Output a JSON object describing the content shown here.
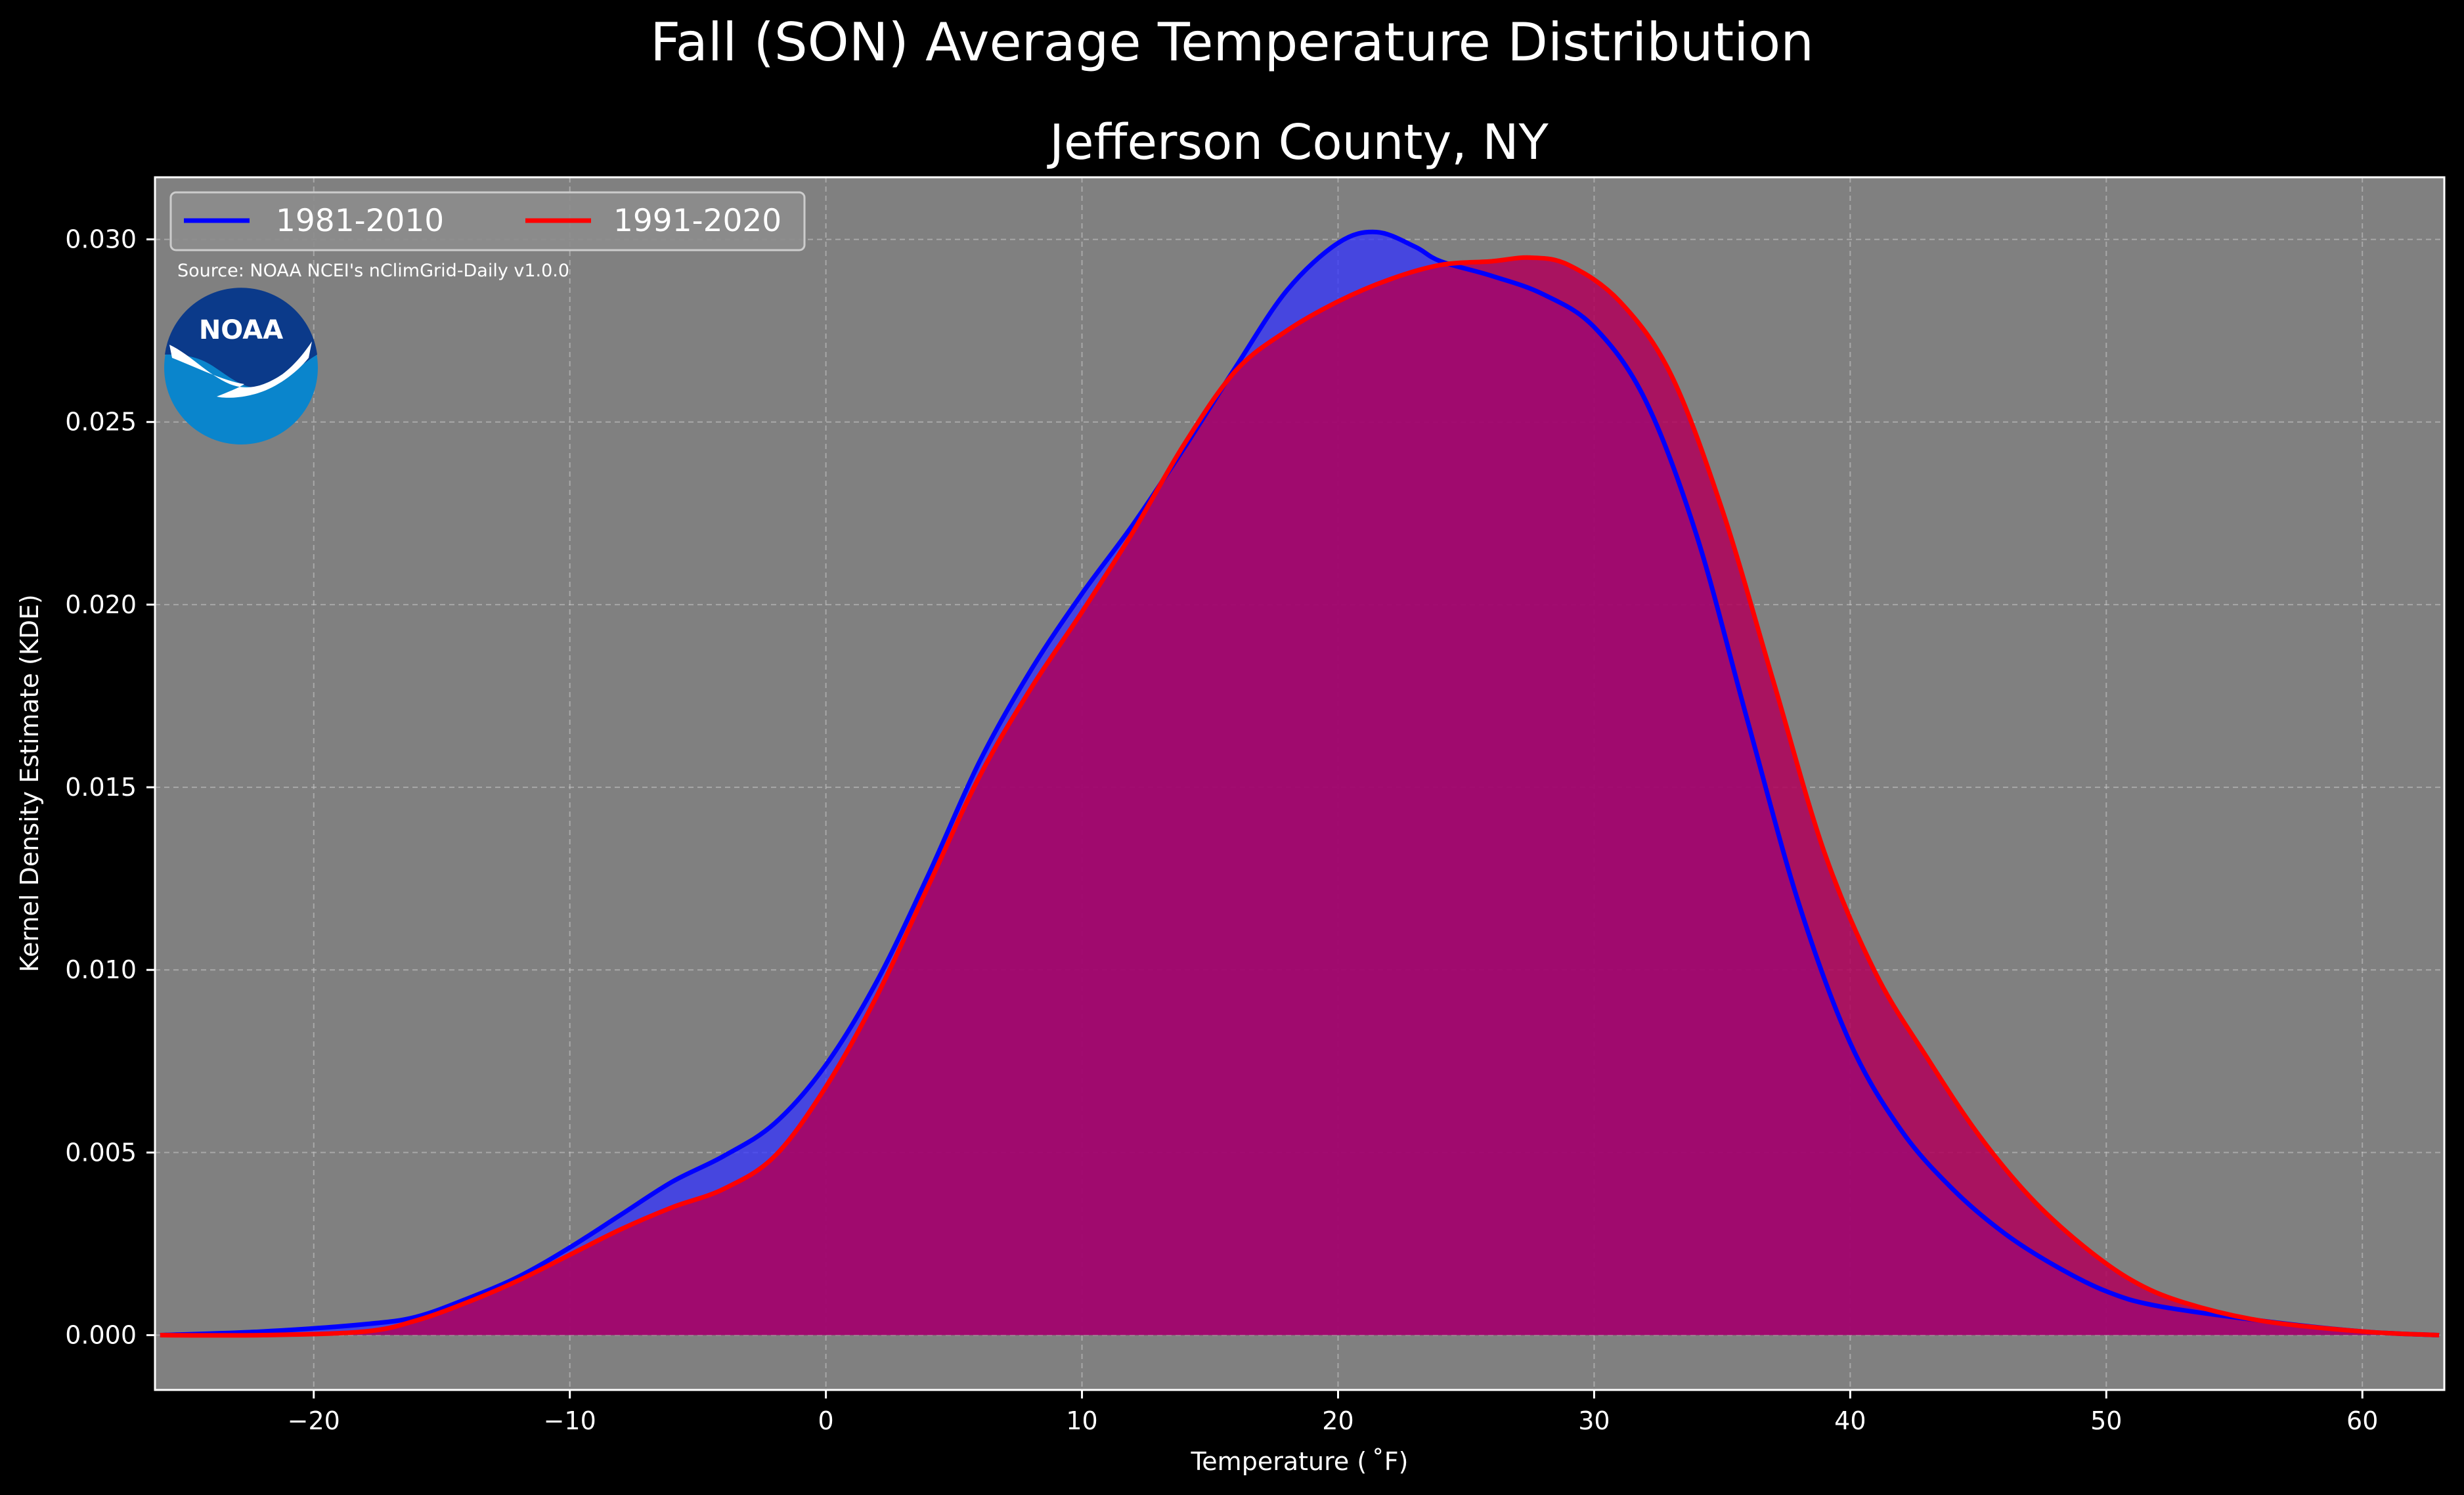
{
  "suptitle": "Fall (SON) Average Temperature Distribution",
  "source_note": "Source: NOAA NCEI's nClimGrid-Daily v1.0.0",
  "logo_text": "NOAA",
  "colors": {
    "background": "#000000",
    "plot_bg": "#808080",
    "series1_line": "#0000ff",
    "series1_fill": "#3333ff",
    "series2_line": "#ff0000",
    "series2_fill": "#b0005a",
    "grid": "#c8c8c8",
    "noaa_dark": "#0b3a8a",
    "noaa_light": "#0a85cc"
  },
  "chart_data": {
    "type": "area",
    "title": "Jefferson County, NY",
    "xlabel": "Temperature ($^\\circ$F)",
    "xlabel_display": "Temperature ( ˚F)",
    "ylabel": "Kernel Density Estimate (KDE)",
    "xlim": [
      -26.2,
      63.2
    ],
    "ylim": [
      -0.0015,
      0.0317
    ],
    "xticks": [
      -20,
      -10,
      0,
      10,
      20,
      30,
      40,
      50,
      60
    ],
    "xtick_labels": [
      "−20",
      "−10",
      "0",
      "10",
      "20",
      "30",
      "40",
      "50",
      "60"
    ],
    "yticks": [
      0.0,
      0.005,
      0.01,
      0.015,
      0.02,
      0.025,
      0.03
    ],
    "ytick_labels": [
      "0.000",
      "0.005",
      "0.010",
      "0.015",
      "0.020",
      "0.025",
      "0.030"
    ],
    "grid": true,
    "legend_position": "top-left",
    "series": [
      {
        "name": "1981-2010",
        "x": [
          -26,
          -22,
          -18,
          -16,
          -14,
          -12,
          -10,
          -8,
          -6,
          -4,
          -2,
          0,
          2,
          4,
          6,
          8,
          10,
          12,
          14,
          16,
          18,
          20,
          21.5,
          23,
          24,
          26,
          28,
          30,
          32,
          34,
          36,
          38,
          40,
          42,
          44,
          46,
          48,
          50,
          52,
          56,
          60,
          63
        ],
        "y": [
          0.0,
          0.0001,
          0.0003,
          0.0005,
          0.001,
          0.0016,
          0.0024,
          0.0033,
          0.0042,
          0.0049,
          0.0058,
          0.0074,
          0.0097,
          0.0126,
          0.0157,
          0.0182,
          0.0203,
          0.0222,
          0.0243,
          0.0265,
          0.0286,
          0.0299,
          0.0302,
          0.0298,
          0.0294,
          0.029,
          0.0285,
          0.0276,
          0.0256,
          0.0219,
          0.0168,
          0.0118,
          0.008,
          0.0056,
          0.004,
          0.0028,
          0.0019,
          0.0012,
          0.0008,
          0.0004,
          0.0001,
          0.0
        ]
      },
      {
        "name": "1991-2020",
        "x": [
          -26,
          -22,
          -18,
          -16,
          -14,
          -12,
          -10,
          -8,
          -6,
          -4,
          -2,
          0,
          2,
          4,
          6,
          8,
          10,
          12,
          14,
          16,
          18,
          20,
          22,
          24,
          26,
          27.5,
          29,
          31,
          33,
          35,
          37,
          39,
          41,
          43,
          45,
          47,
          49,
          51,
          53,
          56,
          60,
          63
        ],
        "y": [
          0.0,
          0.0,
          0.0001,
          0.0004,
          0.0009,
          0.0015,
          0.0022,
          0.0029,
          0.0035,
          0.004,
          0.0049,
          0.0068,
          0.0093,
          0.0123,
          0.0153,
          0.0177,
          0.0198,
          0.022,
          0.0244,
          0.0264,
          0.0275,
          0.0283,
          0.0289,
          0.0293,
          0.0294,
          0.0295,
          0.0293,
          0.0283,
          0.0263,
          0.0226,
          0.0179,
          0.0132,
          0.0099,
          0.0076,
          0.0055,
          0.0038,
          0.0025,
          0.0015,
          0.0009,
          0.0004,
          0.0001,
          0.0
        ]
      }
    ]
  }
}
